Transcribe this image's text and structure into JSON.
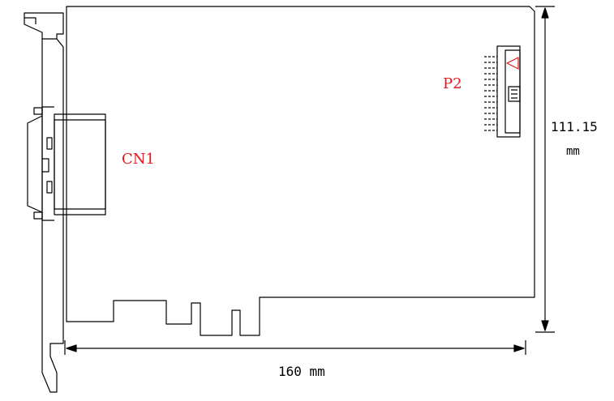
{
  "labels": {
    "cn1": "CN1",
    "p2": "P2"
  },
  "dimensions": {
    "height_value": "111.15",
    "height_unit": "mm",
    "width_text": "160 mm"
  },
  "colors": {
    "line": "#000000",
    "label": "#e8161b"
  }
}
